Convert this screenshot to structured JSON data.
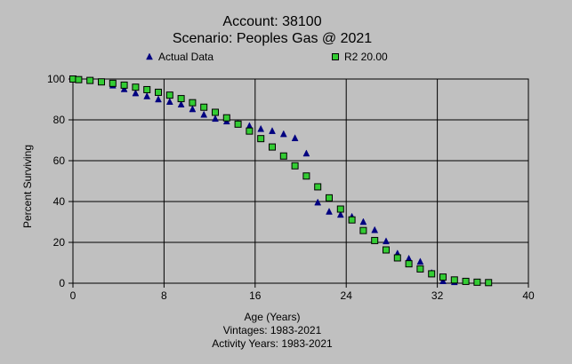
{
  "chart_data": {
    "type": "scatter",
    "title": "Account: 38100",
    "subtitle": "Scenario: Peoples Gas @ 2021",
    "xlabel": "Age (Years)",
    "ylabel": "Percent Surviving",
    "footnotes": [
      "Vintages: 1983-2021",
      "Activity Years: 1983-2021"
    ],
    "xlim": [
      0,
      40
    ],
    "ylim": [
      0,
      100
    ],
    "xticks": [
      0,
      8,
      16,
      24,
      32,
      40
    ],
    "yticks": [
      0,
      20,
      40,
      60,
      80,
      100
    ],
    "grid": true,
    "legend_position": "top",
    "series": [
      {
        "name": "Actual Data",
        "marker": "triangle",
        "color": "#000080",
        "points": [
          [
            0,
            100
          ],
          [
            0.5,
            99.6
          ],
          [
            1.5,
            99.2
          ],
          [
            2.5,
            98.5
          ],
          [
            3.5,
            96.8
          ],
          [
            4.5,
            95
          ],
          [
            5.5,
            93
          ],
          [
            6.5,
            91.5
          ],
          [
            7.5,
            90
          ],
          [
            8.5,
            88.8
          ],
          [
            9.5,
            87.5
          ],
          [
            10.5,
            85.2
          ],
          [
            11.5,
            82.5
          ],
          [
            12.5,
            80.5
          ],
          [
            13.5,
            79.2
          ],
          [
            14.5,
            78
          ],
          [
            15.5,
            77
          ],
          [
            16.5,
            75.5
          ],
          [
            17.5,
            74.5
          ],
          [
            18.5,
            73
          ],
          [
            19.5,
            71
          ],
          [
            20.5,
            63.5
          ],
          [
            21.5,
            39.5
          ],
          [
            22.5,
            35
          ],
          [
            23.5,
            33.5
          ],
          [
            24.5,
            32.5
          ],
          [
            25.5,
            30
          ],
          [
            26.5,
            26
          ],
          [
            27.5,
            20.5
          ],
          [
            28.5,
            14.5
          ],
          [
            29.5,
            12
          ],
          [
            30.5,
            10.5
          ],
          [
            31.5,
            5
          ],
          [
            32.5,
            1
          ],
          [
            33.5,
            0.5
          ]
        ]
      },
      {
        "name": "R2 20.00",
        "marker": "square",
        "color": "#33cc33",
        "points": [
          [
            0,
            100
          ],
          [
            0.5,
            99.7
          ],
          [
            1.5,
            99.3
          ],
          [
            2.5,
            98.6
          ],
          [
            3.5,
            97.9
          ],
          [
            4.5,
            97
          ],
          [
            5.5,
            96
          ],
          [
            6.5,
            94.8
          ],
          [
            7.5,
            93.5
          ],
          [
            8.5,
            92.1
          ],
          [
            9.5,
            90.4
          ],
          [
            10.5,
            88.4
          ],
          [
            11.5,
            86.2
          ],
          [
            12.5,
            83.7
          ],
          [
            13.5,
            81
          ],
          [
            14.5,
            77.9
          ],
          [
            15.5,
            74.5
          ],
          [
            16.5,
            70.8
          ],
          [
            17.5,
            66.7
          ],
          [
            18.5,
            62.3
          ],
          [
            19.5,
            57.5
          ],
          [
            20.5,
            52.5
          ],
          [
            21.5,
            47.2
          ],
          [
            22.5,
            41.8
          ],
          [
            23.5,
            36.3
          ],
          [
            24.5,
            31
          ],
          [
            25.5,
            25.8
          ],
          [
            26.5,
            20.9
          ],
          [
            27.5,
            16.3
          ],
          [
            28.5,
            12.4
          ],
          [
            29.5,
            9.5
          ],
          [
            30.5,
            7
          ],
          [
            31.5,
            4.6
          ],
          [
            32.5,
            3
          ],
          [
            33.5,
            1.6
          ],
          [
            34.5,
            0.9
          ],
          [
            35.5,
            0.5
          ],
          [
            36.5,
            0.3
          ]
        ]
      }
    ]
  }
}
